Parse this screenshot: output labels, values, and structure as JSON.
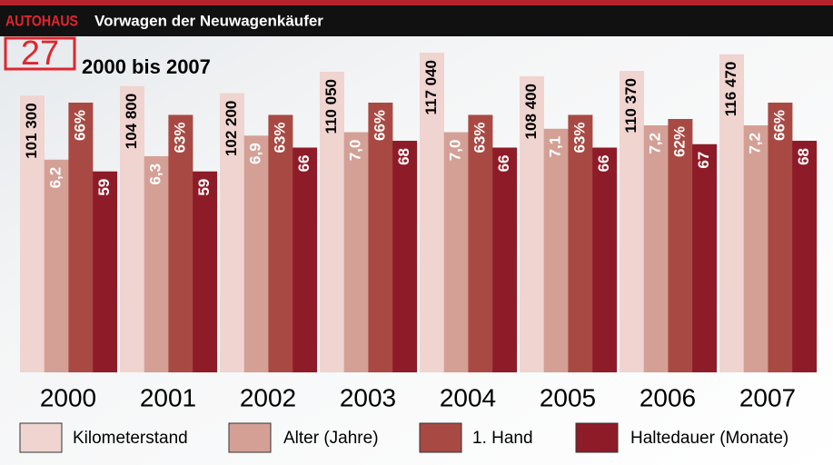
{
  "header": {
    "brand": "AUTOHAUS",
    "issue": "27"
  },
  "chart_data": {
    "type": "bar",
    "title": "Vorwagen der Neuwagenkäufer",
    "subtitle": "2000 bis 2007",
    "categories": [
      "2000",
      "2001",
      "2002",
      "2003",
      "2004",
      "2005",
      "2006",
      "2007"
    ],
    "series": [
      {
        "name": "Kilometerstand",
        "color": "#efd4d0",
        "values": [
          101300,
          104800,
          102200,
          110050,
          117040,
          108400,
          110370,
          116470
        ],
        "value_labels": [
          "101 300",
          "104 800",
          "102 200",
          "110 050",
          "117 040",
          "108 400",
          "110 370",
          "116 470"
        ]
      },
      {
        "name": "Alter (Jahre)",
        "color": "#d4a096",
        "values": [
          6.2,
          6.3,
          6.9,
          7.0,
          7.0,
          7.1,
          7.2,
          7.2
        ],
        "value_labels": [
          "6,2",
          "6,3",
          "6,9",
          "7,0",
          "7,0",
          "7,1",
          "7,2",
          "7,2"
        ]
      },
      {
        "name": "1. Hand",
        "color": "#a84a43",
        "values": [
          66,
          63,
          63,
          66,
          63,
          63,
          62,
          66
        ],
        "value_labels": [
          "66%",
          "63%",
          "63%",
          "66%",
          "63%",
          "63%",
          "62%",
          "66%"
        ]
      },
      {
        "name": "Haltedauer (Monate)",
        "color": "#8e1c28",
        "values": [
          59,
          59,
          66,
          68,
          66,
          66,
          67,
          68
        ]
      }
    ]
  }
}
